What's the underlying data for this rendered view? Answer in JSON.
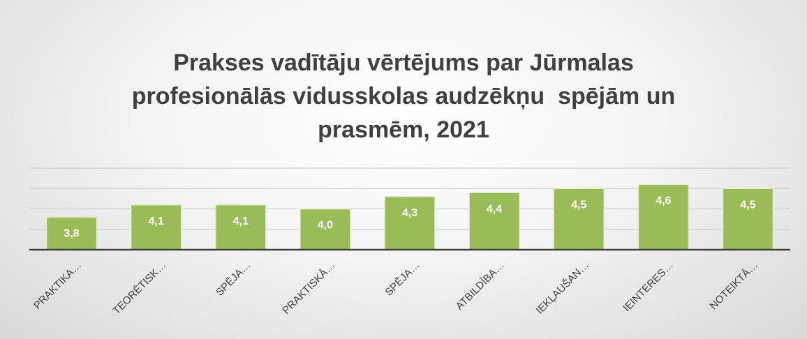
{
  "chart_data": {
    "type": "bar",
    "title": "Prakses vadītāju vērtējums par Jūrmalas profesionālās vidusskolas audzēkņu  spējām un prasmēm, 2021",
    "categories": [
      "PRAKTIKA…",
      "TEORĒTISK…",
      "SPĒJA…",
      "PRAKTISKĀ…",
      "SPĒJA…",
      "ATBILDĪBA…",
      "IEKĻAUŠAN…",
      "IEINTERES…",
      "NOTEIKTĀ…"
    ],
    "values": [
      3.8,
      4.1,
      4.1,
      4.0,
      4.3,
      4.4,
      4.5,
      4.6,
      4.5
    ],
    "value_labels": [
      "3,8",
      "4,1",
      "4,1",
      "4,0",
      "4,3",
      "4,4",
      "4,5",
      "4,6",
      "4,5"
    ],
    "color": "#9bbb59",
    "ylim": [
      3,
      5
    ],
    "yticks": [
      3,
      3.5,
      4,
      4.5,
      5
    ],
    "grid": true
  }
}
